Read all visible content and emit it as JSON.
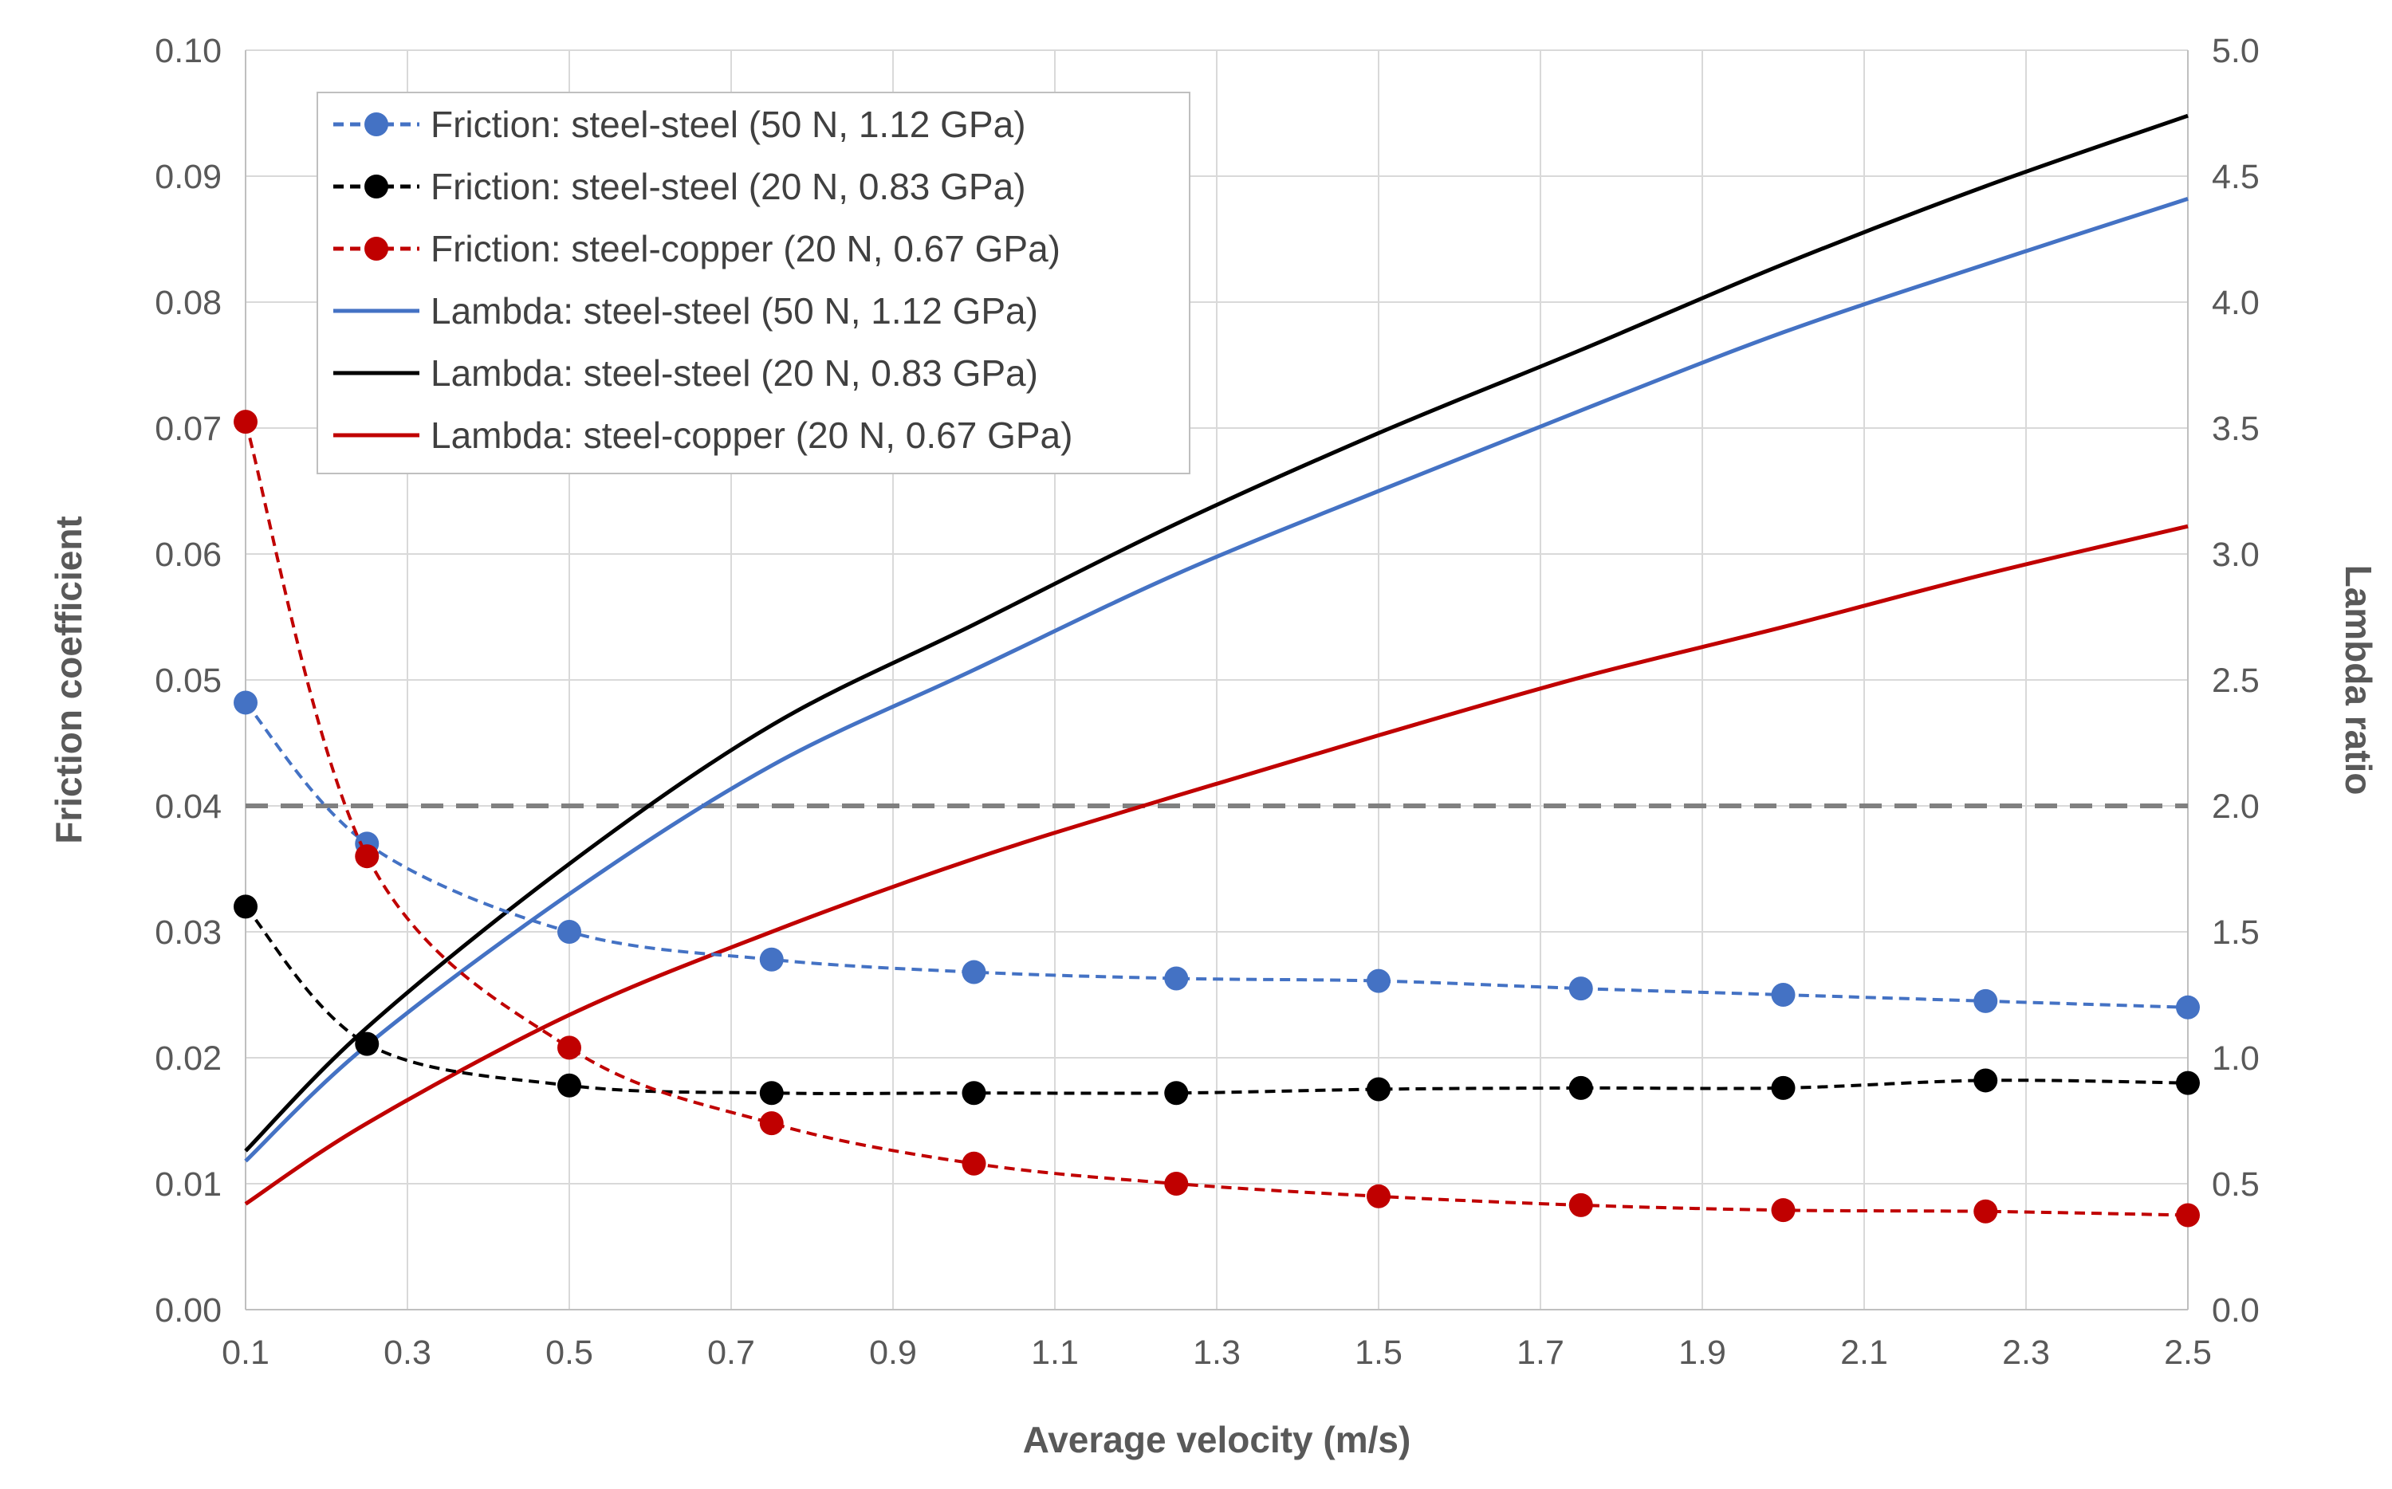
{
  "chart_data": {
    "type": "line",
    "xlabel": "Average velocity (m/s)",
    "ylabel": "Friction coefficient",
    "y2label": "Lambda ratio",
    "xlim": [
      0.1,
      2.5
    ],
    "ylim": [
      0,
      0.1
    ],
    "y2lim": [
      0,
      5
    ],
    "grid": true,
    "legend_position": "top-left",
    "x_ticks": [
      "0.1",
      "0.3",
      "0.5",
      "0.7",
      "0.9",
      "1.1",
      "1.3",
      "1.5",
      "1.7",
      "1.9",
      "2.1",
      "2.3",
      "2.5"
    ],
    "y_ticks": [
      "0.00",
      "0.01",
      "0.02",
      "0.03",
      "0.04",
      "0.05",
      "0.06",
      "0.07",
      "0.08",
      "0.09",
      "0.10"
    ],
    "y2_ticks": [
      "0.0",
      "0.5",
      "1.0",
      "1.5",
      "2.0",
      "2.5",
      "3.0",
      "3.5",
      "4.0",
      "4.5",
      "5.0"
    ],
    "threshold": {
      "axis": "y2",
      "value": 2.0,
      "color": "#808080",
      "style": "dashed"
    },
    "series": [
      {
        "name": "Friction: steel-steel (50 N, 1.12 GPa)",
        "axis": "y",
        "style": "dashed-markers",
        "color": "#4472C4",
        "x": [
          0.1,
          0.25,
          0.5,
          0.75,
          1.0,
          1.25,
          1.5,
          1.75,
          2.0,
          2.25,
          2.5
        ],
        "values": [
          0.0482,
          0.037,
          0.03,
          0.0278,
          0.0268,
          0.0263,
          0.0261,
          0.0255,
          0.025,
          0.0245,
          0.024
        ]
      },
      {
        "name": "Friction: steel-steel (20 N, 0.83 GPa)",
        "axis": "y",
        "style": "dashed-markers",
        "color": "#000000",
        "x": [
          0.1,
          0.25,
          0.5,
          0.75,
          1.0,
          1.25,
          1.5,
          1.75,
          2.0,
          2.25,
          2.5
        ],
        "values": [
          0.032,
          0.0211,
          0.0178,
          0.0172,
          0.0172,
          0.0172,
          0.0175,
          0.0176,
          0.0176,
          0.0182,
          0.018
        ]
      },
      {
        "name": "Friction: steel-copper (20 N, 0.67 GPa)",
        "axis": "y",
        "style": "dashed-markers",
        "color": "#C00000",
        "x": [
          0.1,
          0.25,
          0.5,
          0.75,
          1.0,
          1.25,
          1.5,
          1.75,
          2.0,
          2.25,
          2.5
        ],
        "values": [
          0.0705,
          0.036,
          0.0208,
          0.0148,
          0.0116,
          0.01,
          0.009,
          0.0083,
          0.0079,
          0.0078,
          0.0075
        ]
      },
      {
        "name": "Lambda: steel-steel (50 N, 1.12 GPa)",
        "axis": "y2",
        "style": "solid",
        "color": "#4472C4",
        "x": [
          0.1,
          0.25,
          0.5,
          0.75,
          1.0,
          1.25,
          1.5,
          1.75,
          2.0,
          2.25,
          2.5
        ],
        "values": [
          0.59,
          1.05,
          1.65,
          2.16,
          2.54,
          2.92,
          3.25,
          3.57,
          3.88,
          4.15,
          4.41
        ]
      },
      {
        "name": "Lambda: steel-steel (20 N, 0.83 GPa)",
        "axis": "y2",
        "style": "solid",
        "color": "#000000",
        "x": [
          0.1,
          0.25,
          0.5,
          0.75,
          1.0,
          1.25,
          1.5,
          1.75,
          2.0,
          2.25,
          2.5
        ],
        "values": [
          0.63,
          1.12,
          1.77,
          2.32,
          2.72,
          3.12,
          3.48,
          3.81,
          4.15,
          4.46,
          4.74
        ]
      },
      {
        "name": "Lambda: steel-copper (20 N, 0.67 GPa)",
        "axis": "y2",
        "style": "solid",
        "color": "#C00000",
        "x": [
          0.1,
          0.25,
          0.5,
          0.75,
          1.0,
          1.25,
          1.5,
          1.75,
          2.0,
          2.25,
          2.5
        ],
        "values": [
          0.42,
          0.74,
          1.17,
          1.5,
          1.79,
          2.04,
          2.28,
          2.51,
          2.71,
          2.92,
          3.11
        ]
      }
    ]
  }
}
